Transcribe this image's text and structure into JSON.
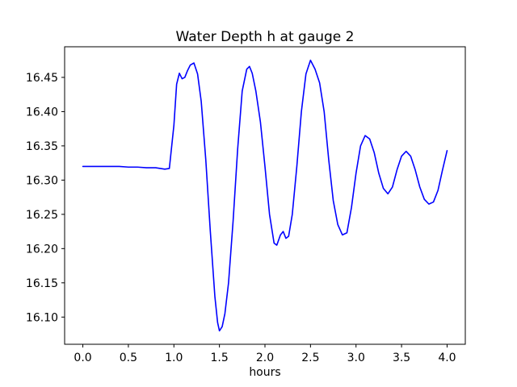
{
  "chart_data": {
    "type": "line",
    "title": "Water Depth h at gauge 2",
    "xlabel": "hours",
    "ylabel": "",
    "xlim": [
      -0.2,
      4.2
    ],
    "ylim": [
      16.0603,
      16.4947
    ],
    "grid": false,
    "legend": "none",
    "line_color": "#0000ff",
    "axes_color": "#000000",
    "x_ticks": [
      0.0,
      0.5,
      1.0,
      1.5,
      2.0,
      2.5,
      3.0,
      3.5,
      4.0
    ],
    "x_tick_labels": [
      "0.0",
      "0.5",
      "1.0",
      "1.5",
      "2.0",
      "2.5",
      "3.0",
      "3.5",
      "4.0"
    ],
    "y_ticks": [
      16.1,
      16.15,
      16.2,
      16.25,
      16.3,
      16.35,
      16.4,
      16.45
    ],
    "y_tick_labels": [
      "16.10",
      "16.15",
      "16.20",
      "16.25",
      "16.30",
      "16.35",
      "16.40",
      "16.45"
    ],
    "series": [
      {
        "name": "water-depth-h-gauge-2",
        "x": [
          0.0,
          0.1,
          0.2,
          0.3,
          0.4,
          0.5,
          0.6,
          0.7,
          0.8,
          0.85,
          0.9,
          0.95,
          1.0,
          1.03,
          1.06,
          1.09,
          1.12,
          1.15,
          1.18,
          1.22,
          1.26,
          1.3,
          1.35,
          1.4,
          1.45,
          1.48,
          1.5,
          1.53,
          1.56,
          1.6,
          1.65,
          1.7,
          1.75,
          1.8,
          1.83,
          1.86,
          1.9,
          1.95,
          2.0,
          2.05,
          2.1,
          2.13,
          2.17,
          2.2,
          2.23,
          2.26,
          2.3,
          2.35,
          2.4,
          2.45,
          2.5,
          2.55,
          2.6,
          2.65,
          2.7,
          2.75,
          2.8,
          2.85,
          2.9,
          2.95,
          3.0,
          3.05,
          3.1,
          3.15,
          3.2,
          3.25,
          3.3,
          3.35,
          3.4,
          3.45,
          3.5,
          3.55,
          3.6,
          3.65,
          3.7,
          3.75,
          3.8,
          3.85,
          3.9,
          3.95,
          4.0
        ],
        "y": [
          16.32,
          16.32,
          16.32,
          16.32,
          16.32,
          16.319,
          16.319,
          16.318,
          16.318,
          16.317,
          16.316,
          16.317,
          16.38,
          16.44,
          16.456,
          16.448,
          16.45,
          16.46,
          16.468,
          16.471,
          16.455,
          16.415,
          16.33,
          16.225,
          16.13,
          16.092,
          16.08,
          16.086,
          16.105,
          16.15,
          16.24,
          16.345,
          16.43,
          16.462,
          16.466,
          16.456,
          16.43,
          16.385,
          16.32,
          16.25,
          16.208,
          16.205,
          16.22,
          16.225,
          16.215,
          16.218,
          16.25,
          16.32,
          16.4,
          16.455,
          16.475,
          16.462,
          16.442,
          16.4,
          16.33,
          16.27,
          16.235,
          16.22,
          16.223,
          16.26,
          16.31,
          16.35,
          16.365,
          16.36,
          16.34,
          16.31,
          16.288,
          16.28,
          16.29,
          16.315,
          16.335,
          16.342,
          16.335,
          16.315,
          16.29,
          16.272,
          16.265,
          16.268,
          16.285,
          16.315,
          16.343
        ]
      }
    ]
  }
}
